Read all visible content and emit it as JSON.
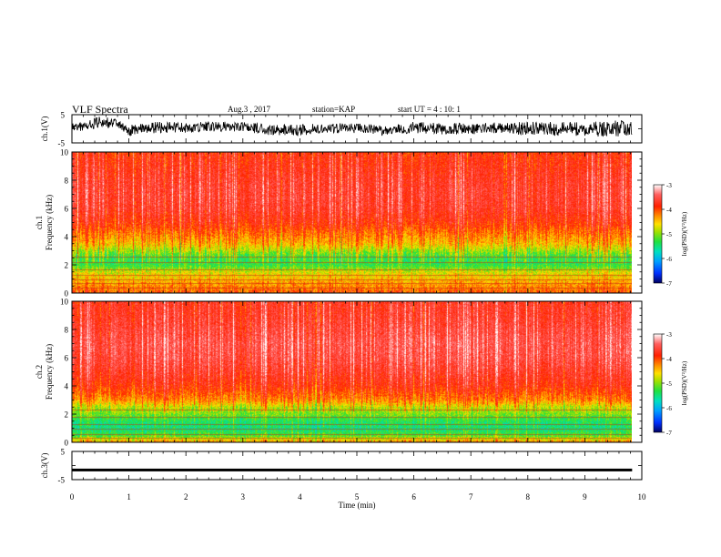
{
  "header": {
    "title": "VLF Spectra",
    "date": "Aug.3 , 2017",
    "station": "station=KAP",
    "start": "start UT = 4 : 10: 1"
  },
  "chart_data": [
    {
      "type": "line",
      "name": "ch1-waveform",
      "ylabel": "ch.1(V)",
      "xlim": [
        0,
        10
      ],
      "ylim": [
        -5,
        5
      ],
      "yticks": [
        "5",
        "-5"
      ],
      "x_extent_min": 9.83,
      "series_envelope": [
        [
          0.0,
          -1.2,
          2.0
        ],
        [
          0.25,
          -0.5,
          2.5
        ],
        [
          0.5,
          0.5,
          4.5
        ],
        [
          0.75,
          0.0,
          3.5
        ],
        [
          1.0,
          -2.5,
          1.5
        ],
        [
          1.5,
          -1.5,
          2.5
        ],
        [
          2.0,
          -1.5,
          2.5
        ],
        [
          2.5,
          -1.0,
          2.5
        ],
        [
          3.0,
          -1.0,
          2.5
        ],
        [
          3.5,
          -2.5,
          1.5
        ],
        [
          4.0,
          -2.5,
          1.5
        ],
        [
          4.5,
          -1.5,
          2.0
        ],
        [
          5.0,
          -1.5,
          2.0
        ],
        [
          5.5,
          -2.5,
          1.0
        ],
        [
          6.0,
          -1.5,
          2.5
        ],
        [
          6.5,
          -2.0,
          2.0
        ],
        [
          7.0,
          -2.0,
          2.0
        ],
        [
          7.5,
          -1.5,
          2.5
        ],
        [
          8.0,
          -2.5,
          2.5
        ],
        [
          8.5,
          -2.5,
          2.5
        ],
        [
          9.0,
          -2.5,
          2.5
        ],
        [
          9.5,
          -3.0,
          3.0
        ],
        [
          9.83,
          -3.0,
          3.0
        ]
      ]
    },
    {
      "type": "heatmap",
      "name": "ch1-spectrogram",
      "ylabel": "Frequency (kHz)",
      "channel": "ch.1",
      "xlim": [
        0,
        10
      ],
      "ylim": [
        0,
        10
      ],
      "yticks": [
        "0",
        "2",
        "4",
        "6",
        "8",
        "10"
      ],
      "x_extent_min": 9.83,
      "colorbar": {
        "label": "log(PSD)(V²/Hz)",
        "range": [
          -7,
          -3
        ],
        "ticks": [
          "-3",
          "-4",
          "-5",
          "-6",
          "-7"
        ],
        "colors": [
          "#000080",
          "#0040ff",
          "#00a0ff",
          "#00e0c0",
          "#20e040",
          "#a0e000",
          "#ffe000",
          "#ff9000",
          "#ff2000",
          "#ff6060",
          "#ffffff"
        ]
      },
      "freq_profile_log_psd": [
        [
          0.0,
          -4.2
        ],
        [
          0.5,
          -4.4
        ],
        [
          1.0,
          -4.6
        ],
        [
          1.5,
          -4.8
        ],
        [
          2.0,
          -5.3
        ],
        [
          2.5,
          -5.3
        ],
        [
          3.0,
          -5.0
        ],
        [
          3.5,
          -4.6
        ],
        [
          4.0,
          -4.4
        ],
        [
          5.0,
          -4.0
        ],
        [
          6.0,
          -3.8
        ],
        [
          7.0,
          -3.75
        ],
        [
          8.0,
          -3.8
        ],
        [
          9.0,
          -3.9
        ],
        [
          10.0,
          -4.0
        ]
      ]
    },
    {
      "type": "heatmap",
      "name": "ch2-spectrogram",
      "ylabel": "Frequency (kHz)",
      "channel": "ch.2",
      "xlim": [
        0,
        10
      ],
      "ylim": [
        0,
        10
      ],
      "yticks": [
        "0",
        "2",
        "4",
        "6",
        "8",
        "10"
      ],
      "x_extent_min": 9.83,
      "colorbar": {
        "label": "log(PSD)(V²/Hz)",
        "range": [
          -7,
          -3
        ],
        "ticks": [
          "-3",
          "-4",
          "-5",
          "-6",
          "-7"
        ],
        "colors": [
          "#000080",
          "#0040ff",
          "#00a0ff",
          "#00e0c0",
          "#20e040",
          "#a0e000",
          "#ffe000",
          "#ff9000",
          "#ff2000",
          "#ff6060",
          "#ffffff"
        ]
      },
      "freq_profile_log_psd": [
        [
          0.0,
          -4.4
        ],
        [
          0.5,
          -5.2
        ],
        [
          1.0,
          -5.5
        ],
        [
          1.5,
          -5.4
        ],
        [
          2.0,
          -5.1
        ],
        [
          2.5,
          -4.9
        ],
        [
          3.0,
          -4.4
        ],
        [
          4.0,
          -4.0
        ],
        [
          5.0,
          -3.8
        ],
        [
          6.0,
          -3.65
        ],
        [
          7.0,
          -3.6
        ],
        [
          8.0,
          -3.7
        ],
        [
          9.0,
          -3.8
        ],
        [
          10.0,
          -3.85
        ]
      ]
    },
    {
      "type": "line",
      "name": "ch3-waveform",
      "ylabel": "ch.3(V)",
      "xlim": [
        0,
        10
      ],
      "ylim": [
        -5,
        5
      ],
      "yticks": [
        "5",
        "-5"
      ],
      "x_extent_min": 9.83,
      "level": -1.5,
      "band": 0.4
    }
  ],
  "xaxis": {
    "label": "Time (min)",
    "ticks": [
      "0",
      "1",
      "2",
      "3",
      "4",
      "5",
      "6",
      "7",
      "8",
      "9",
      "10"
    ]
  }
}
